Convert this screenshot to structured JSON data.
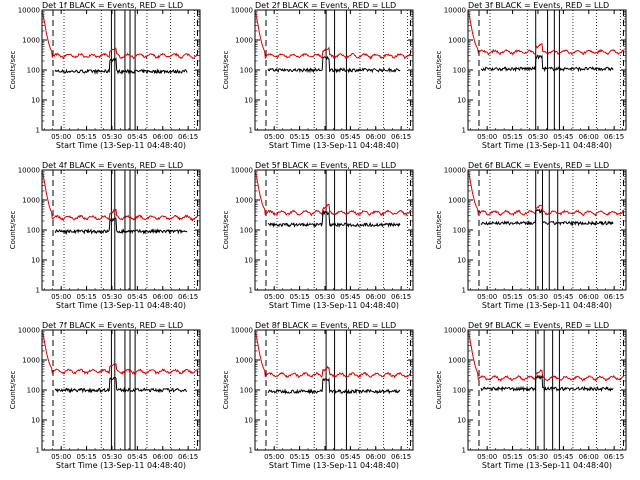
{
  "chart_data": [
    {
      "title": "Det 1f BLACK = Events, RED = LLD",
      "ylabel": "Counts/sec",
      "xlabel": "Start Time (13-Sep-11 04:48:40)"
    },
    {
      "title": "Det 2f BLACK = Events, RED = LLD",
      "ylabel": "Counts/sec",
      "xlabel": "Start Time (13-Sep-11 04:48:40)"
    },
    {
      "title": "Det 3f BLACK = Events, RED = LLD",
      "ylabel": "Counts/sec",
      "xlabel": "Start Time (13-Sep-11 04:48:40)"
    },
    {
      "title": "Det 4f BLACK = Events, RED = LLD",
      "ylabel": "Counts/sec",
      "xlabel": "Start Time (13-Sep-11 04:48:40)"
    },
    {
      "title": "Det 5f BLACK = Events, RED = LLD",
      "ylabel": "Counts/sec",
      "xlabel": "Start Time (13-Sep-11 04:48:40)"
    },
    {
      "title": "Det 6f BLACK = Events, RED = LLD",
      "ylabel": "Counts/sec",
      "xlabel": "Start Time (13-Sep-11 04:48:40)"
    },
    {
      "title": "Det 7f BLACK = Events, RED = LLD",
      "ylabel": "Counts/sec",
      "xlabel": "Start Time (13-Sep-11 04:48:40)"
    },
    {
      "title": "Det 8f BLACK = Events, RED = LLD",
      "ylabel": "Counts/sec",
      "xlabel": "Start Time (13-Sep-11 04:48:40)"
    },
    {
      "title": "Det 9f BLACK = Events, RED = LLD",
      "ylabel": "Counts/sec",
      "xlabel": "Start Time (13-Sep-11 04:48:40)"
    }
  ],
  "shared_axes": {
    "type": "line",
    "y_scale": "log",
    "ylim": [
      1,
      10000
    ],
    "y_ticks": [
      1,
      10,
      100,
      1000,
      10000
    ],
    "y_tick_labels": [
      "1",
      "10",
      "100",
      "1000",
      "10000"
    ],
    "xlim": [
      "04:48:40",
      "06:22:00"
    ],
    "x_ticks": [
      "05:00",
      "05:15",
      "05:30",
      "05:45",
      "06:00",
      "06:15"
    ],
    "series_colors": {
      "events": "#000000",
      "lld": "#dd0000"
    }
  }
}
